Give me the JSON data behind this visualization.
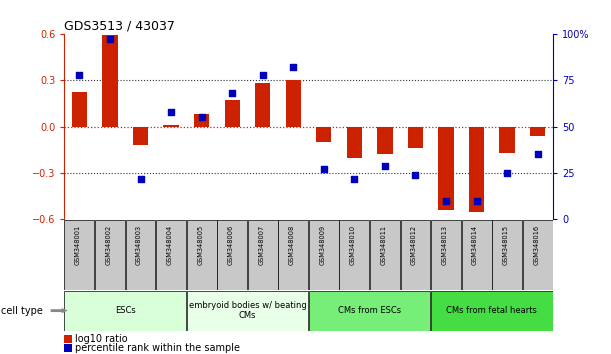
{
  "title": "GDS3513 / 43037",
  "samples": [
    "GSM348001",
    "GSM348002",
    "GSM348003",
    "GSM348004",
    "GSM348005",
    "GSM348006",
    "GSM348007",
    "GSM348008",
    "GSM348009",
    "GSM348010",
    "GSM348011",
    "GSM348012",
    "GSM348013",
    "GSM348014",
    "GSM348015",
    "GSM348016"
  ],
  "log10_ratio": [
    0.22,
    0.59,
    -0.12,
    0.01,
    0.08,
    0.17,
    0.28,
    0.3,
    -0.1,
    -0.2,
    -0.18,
    -0.14,
    -0.54,
    -0.55,
    -0.17,
    -0.06
  ],
  "percentile_rank": [
    78,
    97,
    22,
    58,
    55,
    68,
    78,
    82,
    27,
    22,
    29,
    24,
    10,
    10,
    25,
    35
  ],
  "ylim_left": [
    -0.6,
    0.6
  ],
  "ylim_right": [
    0,
    100
  ],
  "bar_color": "#cc2200",
  "dot_color": "#0000bb",
  "left_axis_color": "#cc2200",
  "right_axis_color": "#0000bb",
  "hline_color": "#cc2200",
  "dotline_color": "#333333",
  "yticks_left": [
    -0.6,
    -0.3,
    0.0,
    0.3,
    0.6
  ],
  "yticks_right": [
    0,
    25,
    50,
    75,
    100
  ],
  "cell_type_label": "cell type",
  "legend_ratio_label": "log10 ratio",
  "legend_pct_label": "percentile rank within the sample",
  "cell_groups": [
    {
      "label": "ESCs",
      "start": 0,
      "end": 3,
      "color": "#d8ffd8"
    },
    {
      "label": "embryoid bodies w/ beating\nCMs",
      "start": 4,
      "end": 7,
      "color": "#e8ffe8"
    },
    {
      "label": "CMs from ESCs",
      "start": 8,
      "end": 11,
      "color": "#77ee77"
    },
    {
      "label": "CMs from fetal hearts",
      "start": 12,
      "end": 15,
      "color": "#44dd44"
    }
  ],
  "bar_width": 0.5,
  "dot_size": 22
}
